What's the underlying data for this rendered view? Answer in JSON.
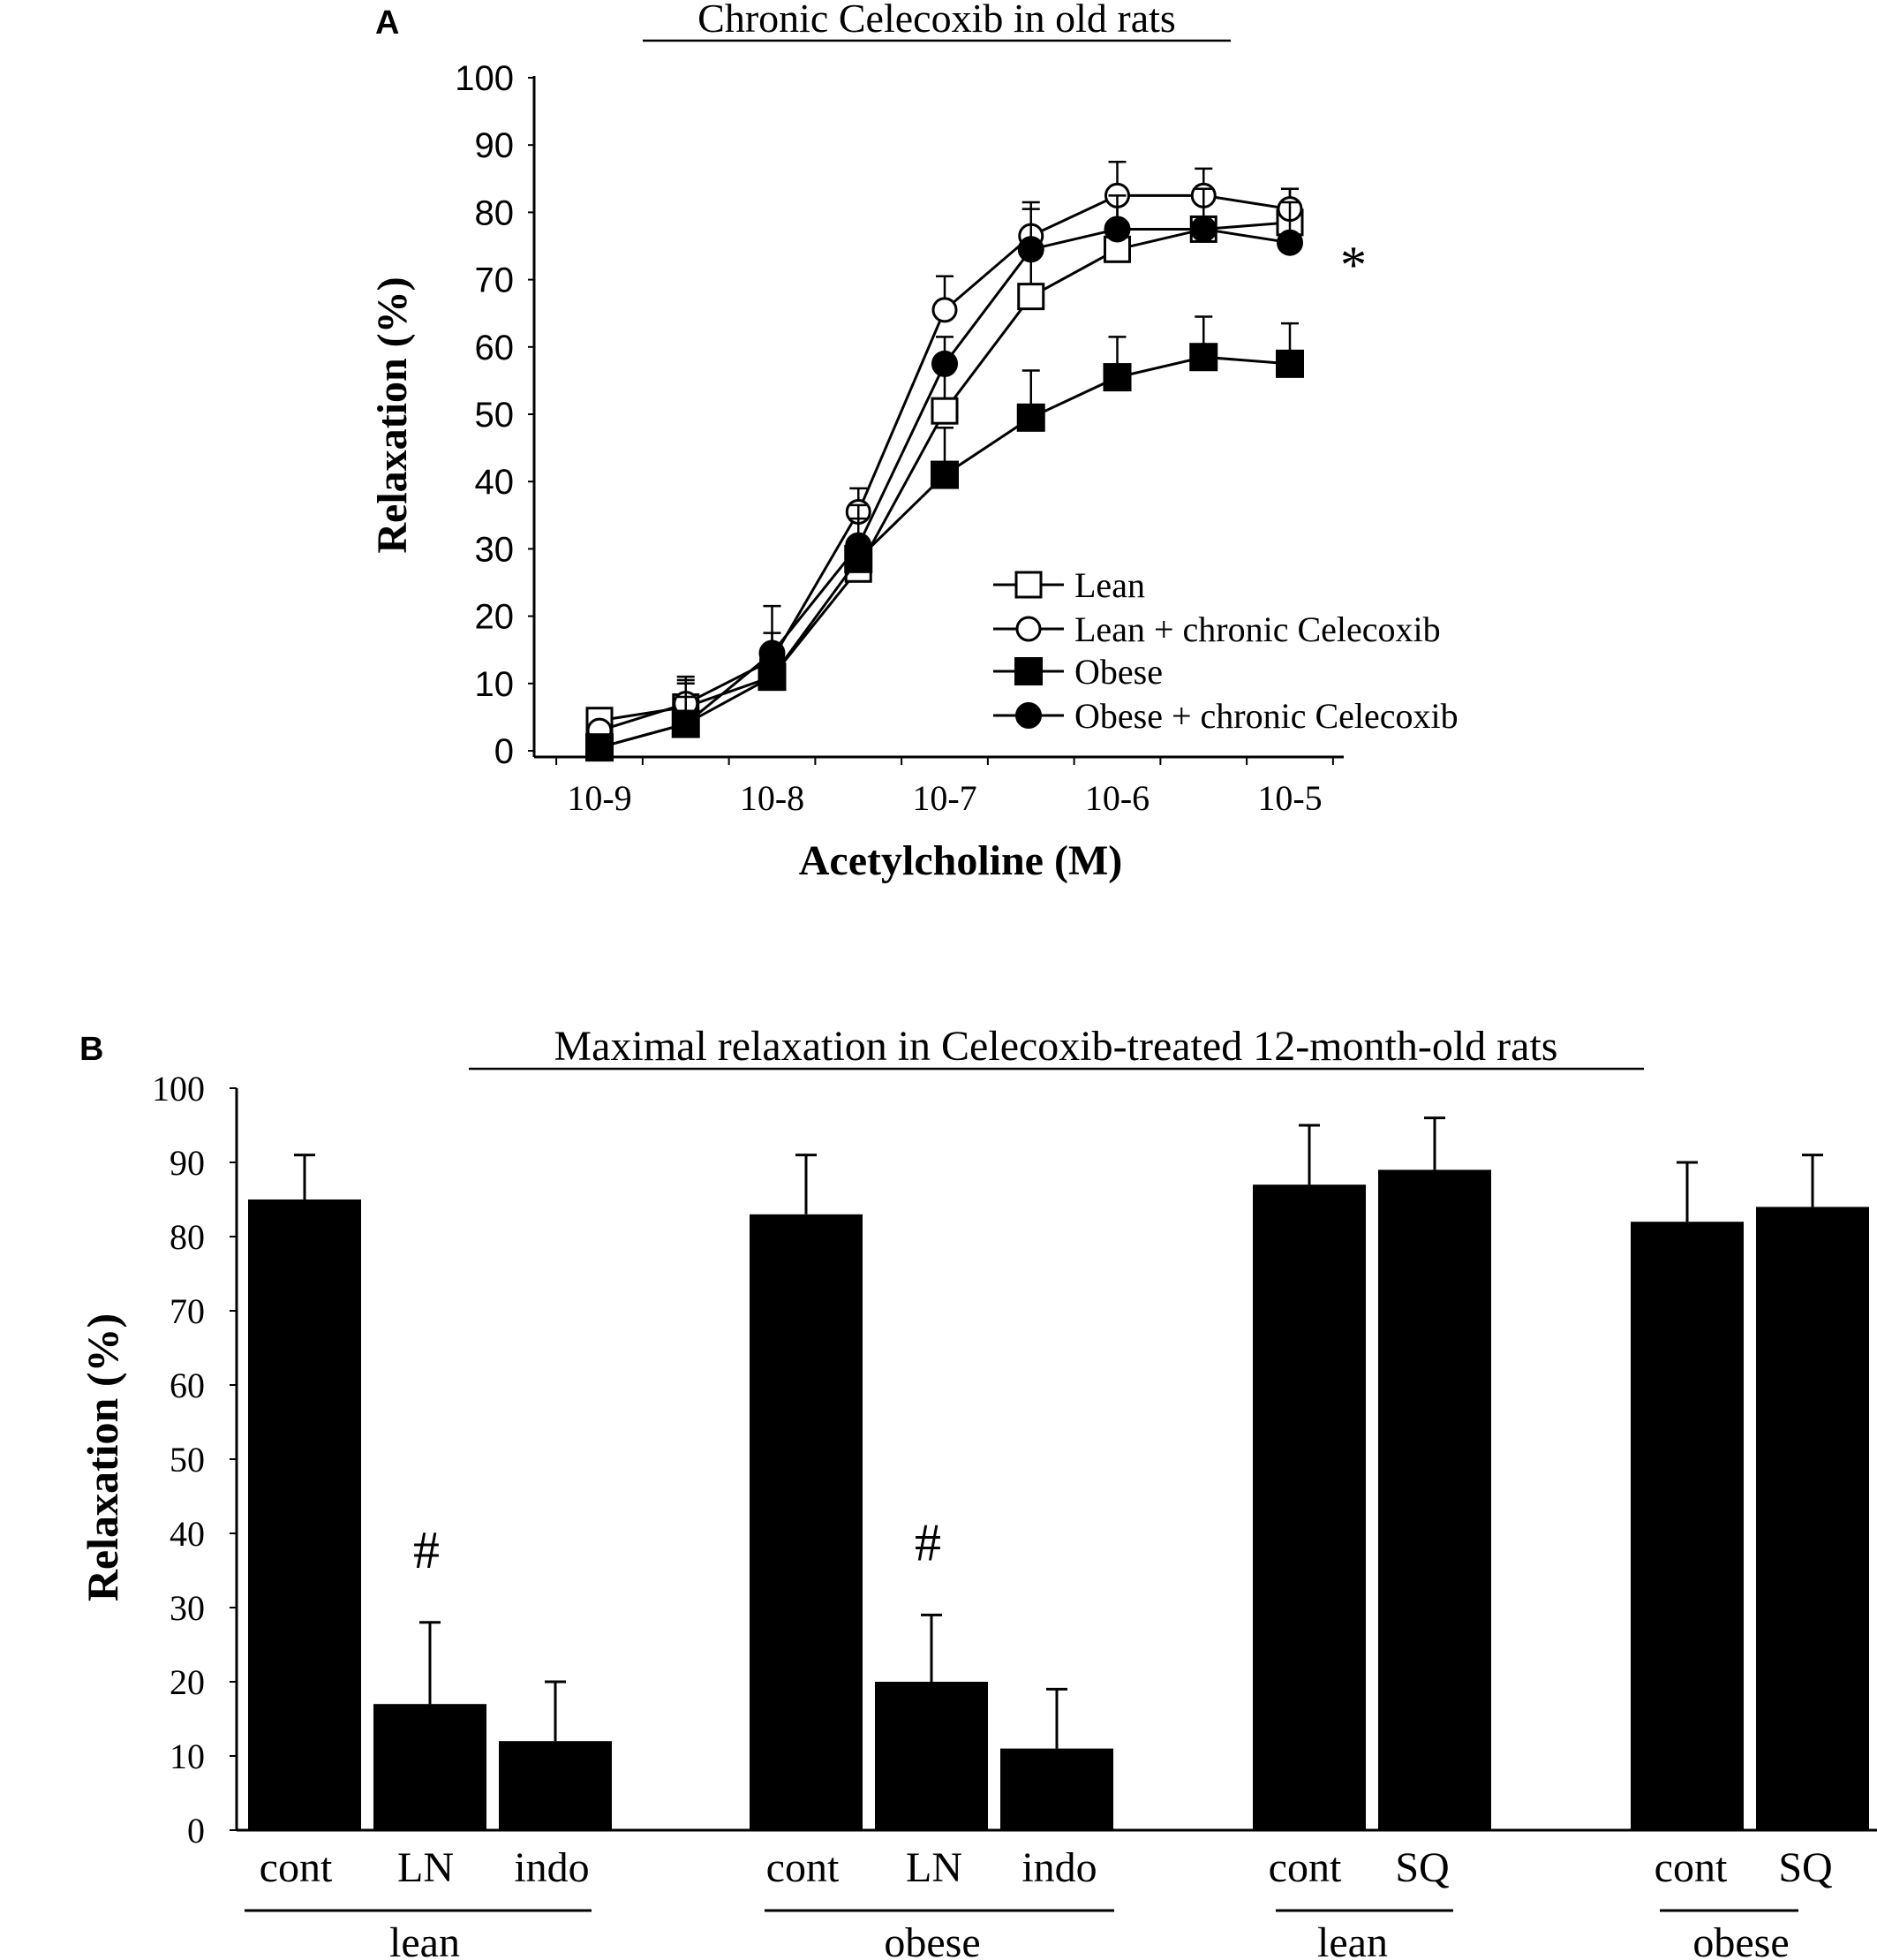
{
  "chart_data": [
    {
      "type": "line",
      "panel_label": "A",
      "title": "Chronic Celecoxib in old rats",
      "xlabel": "Acetylcholine (M)",
      "ylabel": "Relaxation (%)",
      "ylim": [
        0,
        100
      ],
      "yticks": [
        "0",
        "10",
        "20",
        "30",
        "40",
        "50",
        "60",
        "70",
        "80",
        "90",
        "100"
      ],
      "xticks": [
        {
          "base": "10",
          "exp": "-9",
          "x": -9
        },
        {
          "base": "10",
          "exp": "-8",
          "x": -8
        },
        {
          "base": "10",
          "exp": "-7",
          "x": -7
        },
        {
          "base": "10",
          "exp": "-6",
          "x": -6
        },
        {
          "base": "10",
          "exp": "-5",
          "x": -5
        }
      ],
      "x": [
        -9,
        -8.5,
        -8,
        -7.5,
        -7,
        -6.5,
        -6,
        -5.5,
        -5
      ],
      "series": [
        {
          "name": "Lean",
          "marker": "square-open",
          "values": [
            4.5,
            6.5,
            11,
            27,
            50.5,
            67.5,
            74.5,
            77.5,
            78.5
          ],
          "errors": [
            0,
            4,
            4,
            4,
            6,
            7,
            8,
            6,
            5
          ]
        },
        {
          "name": "Lean + chronic Celecoxib",
          "marker": "circle-open",
          "values": [
            3,
            7,
            13.5,
            35.5,
            65.5,
            76.5,
            82.5,
            82.5,
            80.5
          ],
          "errors": [
            0,
            4,
            4,
            3.5,
            5,
            5,
            5,
            4,
            3
          ]
        },
        {
          "name": "Obese",
          "marker": "square-filled",
          "values": [
            0.5,
            4,
            11,
            28.5,
            41,
            49.5,
            55.5,
            58.5,
            57.5
          ],
          "errors": [
            0,
            6,
            4,
            6,
            7,
            7,
            6,
            6,
            6
          ]
        },
        {
          "name": "Obese + chronic Celecoxib",
          "marker": "circle-filled",
          "values": [
            0.5,
            4,
            14.5,
            30.5,
            57.5,
            74.5,
            77.5,
            77.5,
            75.5
          ],
          "errors": [
            0,
            4,
            7,
            6,
            4,
            6,
            5,
            6,
            6
          ]
        }
      ],
      "annotation": "*"
    },
    {
      "type": "bar",
      "panel_label": "B",
      "title": "Maximal relaxation in Celecoxib-treated 12-month-old rats",
      "ylabel": "Relaxation (%)",
      "ylim": [
        0,
        100
      ],
      "yticks": [
        "0",
        "10",
        "20",
        "30",
        "40",
        "50",
        "60",
        "70",
        "80",
        "90",
        "100"
      ],
      "groups": [
        {
          "label": "lean",
          "bars": [
            {
              "label": "cont",
              "value": 85,
              "error": 6
            },
            {
              "label": "LN",
              "value": 17,
              "error": 11,
              "mark": "#"
            },
            {
              "label": "indo",
              "value": 12,
              "error": 8
            }
          ]
        },
        {
          "label": "obese",
          "bars": [
            {
              "label": "cont",
              "value": 83,
              "error": 8
            },
            {
              "label": "LN",
              "value": 20,
              "error": 9,
              "mark": "#"
            },
            {
              "label": "indo",
              "value": 11,
              "error": 8
            }
          ]
        },
        {
          "label": "lean",
          "bars": [
            {
              "label": "cont",
              "value": 87,
              "error": 8
            },
            {
              "label": "SQ",
              "value": 89,
              "error": 7
            }
          ]
        },
        {
          "label": "obese",
          "bars": [
            {
              "label": "cont",
              "value": 82,
              "error": 8
            },
            {
              "label": "SQ",
              "value": 84,
              "error": 7
            }
          ]
        }
      ]
    }
  ]
}
